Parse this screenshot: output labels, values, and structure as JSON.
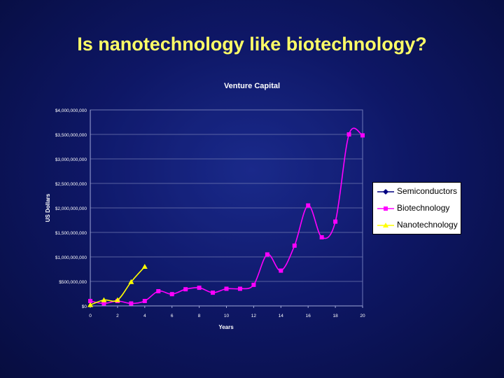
{
  "slide": {
    "title": "Is nanotechnology like biotechnology?"
  },
  "chart_data": {
    "type": "line",
    "title": "Venture Capital",
    "xlabel": "Years",
    "ylabel": "US Dollars",
    "xlim": [
      0,
      20
    ],
    "ylim": [
      0,
      4000000000
    ],
    "x_ticks": [
      "0",
      "2",
      "4",
      "6",
      "8",
      "10",
      "12",
      "14",
      "16",
      "18",
      "20"
    ],
    "y_ticks": [
      "$0",
      "$500,000,000",
      "$1,000,000,000",
      "$1,500,000,000",
      "$2,000,000,000",
      "$2,500,000,000",
      "$3,000,000,000",
      "$3,500,000,000",
      "$4,000,000,000"
    ],
    "grid": true,
    "legend_position": "right",
    "series": [
      {
        "name": "Semiconductors",
        "color": "#000080",
        "marker": "diamond",
        "x": [],
        "values": []
      },
      {
        "name": "Biotechnology",
        "color": "#ff00ff",
        "marker": "square",
        "x": [
          0,
          1,
          2,
          3,
          4,
          5,
          6,
          7,
          8,
          9,
          10,
          11,
          12,
          13,
          14,
          15,
          16,
          17,
          18,
          19,
          20
        ],
        "values": [
          100000000,
          50000000,
          100000000,
          50000000,
          100000000,
          300000000,
          240000000,
          340000000,
          370000000,
          270000000,
          350000000,
          350000000,
          430000000,
          1050000000,
          720000000,
          1230000000,
          2050000000,
          1400000000,
          1720000000,
          3500000000,
          3480000000
        ]
      },
      {
        "name": "Nanotechnology",
        "color": "#ffff00",
        "marker": "triangle",
        "x": [
          0,
          1,
          2,
          3,
          4
        ],
        "values": [
          20000000,
          120000000,
          120000000,
          490000000,
          800000000
        ]
      }
    ]
  }
}
